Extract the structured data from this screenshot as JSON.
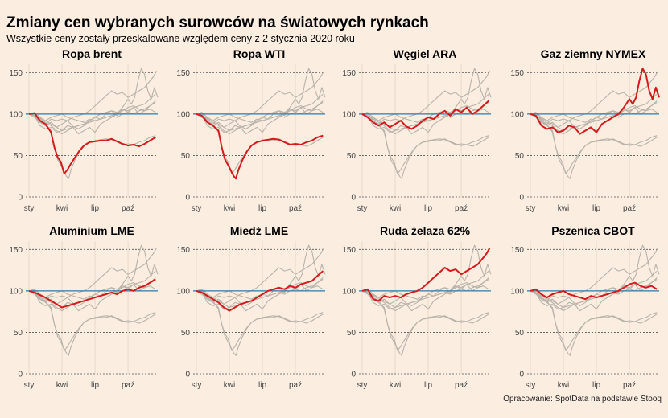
{
  "title": "Zmiany cen wybranych surowców na światowych rynkach",
  "subtitle": "Wszystkie ceny zostały przeskalowane względem ceny z 2 stycznia 2020 roku",
  "source": "Opracowanie: SpotData na podstawie Stooq",
  "colors": {
    "background": "#fbeee1",
    "highlight": "#d7191c",
    "context": "#b8b2a9",
    "reference_line": "#2a7ab0",
    "grid": "#555555"
  },
  "chart_data": {
    "type": "line",
    "layout": "small-multiples 4x2",
    "reference_value": 100,
    "y_ticks": [
      0,
      50,
      100,
      150
    ],
    "ylim": [
      0,
      160
    ],
    "x_ticks": [
      "sty",
      "kwi",
      "lip",
      "paź"
    ],
    "x_tick_months": [
      0,
      3,
      6,
      9
    ],
    "x_range_months": [
      0,
      11.7
    ],
    "panels": [
      {
        "title": "Ropa brent",
        "months": [
          0,
          0.5,
          1,
          1.5,
          2,
          2.3,
          2.6,
          2.9,
          3.2,
          3.5,
          3.8,
          4.2,
          4.6,
          5,
          5.5,
          6,
          6.5,
          7,
          7.5,
          8,
          8.5,
          9,
          9.5,
          10,
          10.5,
          11,
          11.5
        ],
        "values": [
          100,
          101,
          92,
          88,
          78,
          60,
          48,
          42,
          28,
          33,
          40,
          48,
          56,
          62,
          66,
          67,
          68,
          68,
          70,
          67,
          64,
          62,
          63,
          61,
          64,
          68,
          72
        ]
      },
      {
        "title": "Ropa WTI",
        "months": [
          0,
          0.5,
          1,
          1.5,
          2,
          2.3,
          2.6,
          2.9,
          3.2,
          3.4,
          3.6,
          3.8,
          4.2,
          4.6,
          5,
          5.5,
          6,
          6.5,
          7,
          7.5,
          8,
          8.5,
          9,
          9.5,
          10,
          10.5,
          11,
          11.5
        ],
        "values": [
          100,
          98,
          90,
          86,
          80,
          60,
          45,
          38,
          30,
          25,
          22,
          32,
          45,
          55,
          62,
          66,
          68,
          69,
          70,
          69,
          66,
          63,
          64,
          63,
          66,
          68,
          72,
          74
        ]
      },
      {
        "title": "Węgiel ARA",
        "months": [
          0,
          0.5,
          1,
          1.5,
          2,
          2.5,
          3,
          3.5,
          4,
          4.5,
          5,
          5.5,
          6,
          6.5,
          7,
          7.5,
          8,
          8.5,
          9,
          9.5,
          10,
          10.5,
          11,
          11.5
        ],
        "values": [
          100,
          96,
          90,
          86,
          90,
          84,
          88,
          92,
          85,
          82,
          86,
          92,
          96,
          94,
          100,
          104,
          98,
          106,
          102,
          108,
          100,
          104,
          110,
          116
        ]
      },
      {
        "title": "Gaz ziemny NYMEX",
        "months": [
          0,
          0.5,
          1,
          1.5,
          2,
          2.5,
          3,
          3.5,
          4,
          4.5,
          5,
          5.5,
          6,
          6.5,
          7,
          7.5,
          8,
          8.5,
          9,
          9.3,
          9.6,
          9.9,
          10.2,
          10.5,
          10.8,
          11.1,
          11.4,
          11.7
        ],
        "values": [
          100,
          98,
          86,
          82,
          84,
          78,
          80,
          86,
          84,
          76,
          80,
          84,
          78,
          88,
          92,
          96,
          100,
          108,
          118,
          112,
          120,
          140,
          155,
          148,
          128,
          118,
          132,
          120
        ]
      },
      {
        "title": "Aluminium LME",
        "months": [
          0,
          0.5,
          1,
          1.5,
          2,
          2.5,
          3,
          3.5,
          4,
          4.5,
          5,
          5.5,
          6,
          6.5,
          7,
          7.5,
          8,
          8.5,
          9,
          9.5,
          10,
          10.5,
          11,
          11.5
        ],
        "values": [
          100,
          98,
          95,
          92,
          88,
          84,
          80,
          82,
          84,
          86,
          88,
          90,
          92,
          94,
          96,
          98,
          96,
          100,
          102,
          100,
          104,
          106,
          110,
          114
        ]
      },
      {
        "title": "Miedź LME",
        "months": [
          0,
          0.5,
          1,
          1.5,
          2,
          2.5,
          3,
          3.5,
          4,
          4.5,
          5,
          5.5,
          6,
          6.5,
          7,
          7.5,
          8,
          8.5,
          9,
          9.5,
          10,
          10.5,
          11,
          11.5
        ],
        "values": [
          100,
          98,
          94,
          90,
          86,
          80,
          76,
          80,
          84,
          86,
          88,
          92,
          96,
          100,
          102,
          104,
          102,
          106,
          104,
          108,
          110,
          112,
          118,
          124
        ]
      },
      {
        "title": "Ruda żelaza 62%",
        "months": [
          0,
          0.5,
          1,
          1.5,
          2,
          2.5,
          3,
          3.5,
          4,
          4.5,
          5,
          5.5,
          6,
          6.5,
          7,
          7.5,
          8,
          8.5,
          9,
          9.5,
          10,
          10.5,
          11,
          11.3,
          11.6
        ],
        "values": [
          100,
          102,
          90,
          88,
          94,
          92,
          94,
          92,
          96,
          98,
          100,
          104,
          110,
          116,
          122,
          128,
          124,
          126,
          120,
          124,
          128,
          132,
          140,
          145,
          152
        ]
      },
      {
        "title": "Pszenica CBOT",
        "months": [
          0,
          0.5,
          1,
          1.5,
          2,
          2.5,
          3,
          3.5,
          4,
          4.5,
          5,
          5.5,
          6,
          6.5,
          7,
          7.5,
          8,
          8.5,
          9,
          9.5,
          10,
          10.5,
          11,
          11.5
        ],
        "values": [
          100,
          102,
          96,
          92,
          96,
          98,
          100,
          96,
          94,
          92,
          90,
          94,
          92,
          94,
          96,
          98,
          100,
          104,
          108,
          110,
          106,
          104,
          106,
          102
        ]
      }
    ]
  }
}
